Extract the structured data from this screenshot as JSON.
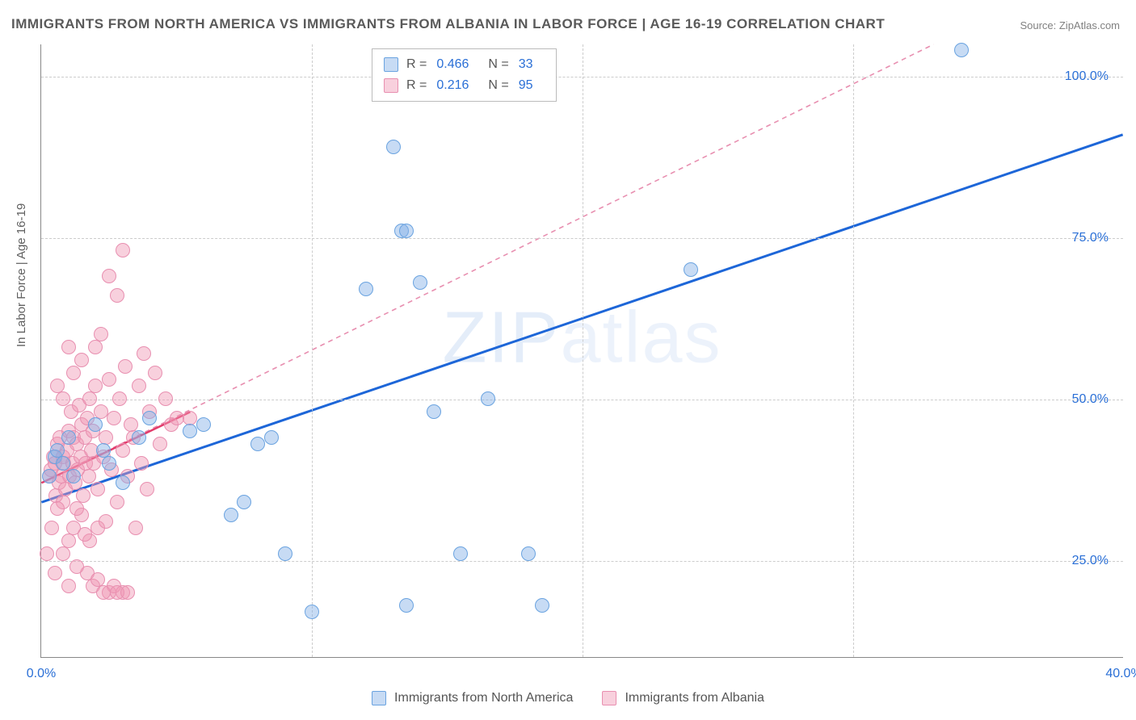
{
  "title": "IMMIGRANTS FROM NORTH AMERICA VS IMMIGRANTS FROM ALBANIA IN LABOR FORCE | AGE 16-19 CORRELATION CHART",
  "source_label": "Source: ZipAtlas.com",
  "watermark": {
    "bold": "ZIP",
    "light": "atlas"
  },
  "y_axis": {
    "label": "In Labor Force | Age 16-19"
  },
  "chart": {
    "type": "scatter",
    "xlim": [
      0,
      40
    ],
    "ylim": [
      10,
      105
    ],
    "xticks": [
      0,
      40
    ],
    "xtick_labels": [
      "0.0%",
      "40.0%"
    ],
    "x_grid_at": [
      10,
      20,
      30
    ],
    "yticks": [
      25,
      50,
      75,
      100
    ],
    "ytick_labels": [
      "25.0%",
      "50.0%",
      "75.0%",
      "100.0%"
    ],
    "background_color": "#ffffff",
    "grid_color": "#cccccc",
    "marker_radius": 9,
    "series": [
      {
        "name": "Immigrants from North America",
        "color_fill": "rgba(130,175,230,0.45)",
        "color_stroke": "#6aa3e0",
        "trend": {
          "x1": 0,
          "y1": 34,
          "x2": 40,
          "y2": 91,
          "stroke": "#1d66d8",
          "width": 3,
          "dash": "none"
        },
        "stats": {
          "R": "0.466",
          "N": "33"
        },
        "points": [
          [
            0.3,
            38
          ],
          [
            0.5,
            41
          ],
          [
            0.6,
            42
          ],
          [
            0.8,
            40
          ],
          [
            1.0,
            44
          ],
          [
            1.2,
            38
          ],
          [
            2.0,
            46
          ],
          [
            2.3,
            42
          ],
          [
            2.5,
            40
          ],
          [
            3.0,
            37
          ],
          [
            3.6,
            44
          ],
          [
            4.0,
            47
          ],
          [
            5.5,
            45
          ],
          [
            6.0,
            46
          ],
          [
            7.0,
            32
          ],
          [
            7.5,
            34
          ],
          [
            8.0,
            43
          ],
          [
            8.5,
            44
          ],
          [
            9.0,
            26
          ],
          [
            10.0,
            17
          ],
          [
            12.0,
            67
          ],
          [
            13.0,
            89
          ],
          [
            13.3,
            76
          ],
          [
            13.5,
            76
          ],
          [
            14.0,
            68
          ],
          [
            14.5,
            48
          ],
          [
            15.5,
            26
          ],
          [
            16.5,
            50
          ],
          [
            18.0,
            26
          ],
          [
            18.5,
            18
          ],
          [
            24.0,
            70
          ],
          [
            34.0,
            104
          ],
          [
            13.5,
            18
          ]
        ]
      },
      {
        "name": "Immigrants from Albania",
        "color_fill": "rgba(240,150,180,0.45)",
        "color_stroke": "#e88fb0",
        "trend": {
          "x1": 0,
          "y1": 37,
          "x2": 33,
          "y2": 105,
          "stroke": "#e88fb0",
          "width": 1.6,
          "dash": "6 5"
        },
        "trend_solid": {
          "x1": 0,
          "y1": 37,
          "x2": 5.5,
          "y2": 48,
          "stroke": "#e23b6b",
          "width": 2.5
        },
        "stats": {
          "R": "0.216",
          "N": "95"
        },
        "points": [
          [
            0.2,
            26
          ],
          [
            0.3,
            38
          ],
          [
            0.35,
            39
          ],
          [
            0.4,
            30
          ],
          [
            0.45,
            41
          ],
          [
            0.5,
            40
          ],
          [
            0.55,
            35
          ],
          [
            0.6,
            43
          ],
          [
            0.65,
            37
          ],
          [
            0.7,
            44
          ],
          [
            0.75,
            38
          ],
          [
            0.8,
            41
          ],
          [
            0.85,
            40
          ],
          [
            0.9,
            36
          ],
          [
            0.95,
            42
          ],
          [
            1.0,
            45
          ],
          [
            1.05,
            38
          ],
          [
            1.1,
            48
          ],
          [
            1.15,
            40
          ],
          [
            1.2,
            44
          ],
          [
            1.25,
            37
          ],
          [
            1.3,
            43
          ],
          [
            1.35,
            39
          ],
          [
            1.4,
            49
          ],
          [
            1.45,
            41
          ],
          [
            1.5,
            46
          ],
          [
            1.55,
            35
          ],
          [
            1.6,
            44
          ],
          [
            1.65,
            40
          ],
          [
            1.7,
            47
          ],
          [
            1.75,
            38
          ],
          [
            1.8,
            50
          ],
          [
            1.85,
            42
          ],
          [
            1.9,
            45
          ],
          [
            1.95,
            40
          ],
          [
            2.0,
            52
          ],
          [
            2.1,
            36
          ],
          [
            2.2,
            48
          ],
          [
            2.3,
            41
          ],
          [
            2.4,
            44
          ],
          [
            2.5,
            53
          ],
          [
            2.6,
            39
          ],
          [
            2.7,
            47
          ],
          [
            2.8,
            34
          ],
          [
            2.9,
            50
          ],
          [
            3.0,
            42
          ],
          [
            3.1,
            55
          ],
          [
            3.2,
            38
          ],
          [
            3.3,
            46
          ],
          [
            3.4,
            44
          ],
          [
            3.5,
            30
          ],
          [
            3.6,
            52
          ],
          [
            3.7,
            40
          ],
          [
            3.8,
            57
          ],
          [
            3.9,
            36
          ],
          [
            4.0,
            48
          ],
          [
            4.2,
            54
          ],
          [
            4.4,
            43
          ],
          [
            4.6,
            50
          ],
          [
            4.8,
            46
          ],
          [
            5.0,
            47
          ],
          [
            5.5,
            47
          ],
          [
            1.0,
            28
          ],
          [
            1.2,
            30
          ],
          [
            1.5,
            32
          ],
          [
            1.8,
            28
          ],
          [
            2.1,
            30
          ],
          [
            0.8,
            34
          ],
          [
            0.6,
            33
          ],
          [
            1.3,
            33
          ],
          [
            1.6,
            29
          ],
          [
            2.4,
            31
          ],
          [
            2.8,
            66
          ],
          [
            3.0,
            73
          ],
          [
            2.5,
            69
          ],
          [
            1.0,
            58
          ],
          [
            1.2,
            54
          ],
          [
            1.5,
            56
          ],
          [
            0.6,
            52
          ],
          [
            0.8,
            50
          ],
          [
            2.0,
            58
          ],
          [
            2.2,
            60
          ],
          [
            2.5,
            20
          ],
          [
            2.7,
            21
          ],
          [
            3.0,
            20
          ],
          [
            1.7,
            23
          ],
          [
            0.5,
            23
          ],
          [
            0.8,
            26
          ],
          [
            1.0,
            21
          ],
          [
            1.3,
            24
          ],
          [
            1.9,
            21
          ],
          [
            2.1,
            22
          ],
          [
            2.3,
            20
          ],
          [
            2.8,
            20
          ],
          [
            3.2,
            20
          ]
        ]
      }
    ],
    "legend_box": {
      "labels": {
        "R": "R =",
        "N": "N ="
      }
    },
    "bottom_legend": [
      "Immigrants from North America",
      "Immigrants from Albania"
    ]
  }
}
